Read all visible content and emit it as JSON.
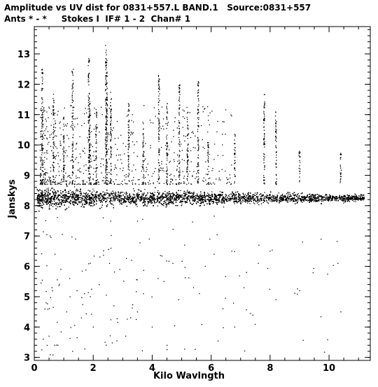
{
  "header": {
    "line1": "Amplitude vs UV dist for 0831+557.L BAND.1   Source:0831+557",
    "line2": "Ants * - *     Stokes I  IF# 1 - 2  Chan# 1"
  },
  "chart_data": {
    "type": "scatter",
    "title": "Amplitude vs UV dist for 0831+557.L BAND.1   Source:0831+557",
    "subtitle": "Ants * - *     Stokes I  IF# 1 - 2  Chan# 1",
    "xlabel": "Kilo Wavlngth",
    "ylabel": "Janskys",
    "xlim": [
      0,
      11.4
    ],
    "ylim": [
      2.9,
      13.9
    ],
    "xticks": [
      0,
      2,
      4,
      6,
      8,
      10
    ],
    "yticks": [
      3,
      4,
      5,
      6,
      7,
      8,
      9,
      10,
      11,
      12,
      13
    ],
    "grid": false,
    "legend": "none",
    "marker_color": "#000000",
    "main_band": {
      "x_range": [
        0.1,
        11.2
      ],
      "center": 8.25,
      "half_width_inner": 0.45,
      "half_width_outer": 0.15
    },
    "spikes": [
      {
        "x": 0.27,
        "ymax": 12.5
      },
      {
        "x": 0.65,
        "ymax": 11.7
      },
      {
        "x": 1.0,
        "ymax": 11.0
      },
      {
        "x": 1.3,
        "ymax": 12.5
      },
      {
        "x": 1.85,
        "ymax": 12.9
      },
      {
        "x": 1.88,
        "ymax": 11.5
      },
      {
        "x": 2.1,
        "ymax": 11.3
      },
      {
        "x": 2.43,
        "ymax": 13.3
      },
      {
        "x": 2.46,
        "ymax": 12.8
      },
      {
        "x": 2.6,
        "ymax": 11.8
      },
      {
        "x": 3.2,
        "ymax": 11.4
      },
      {
        "x": 3.7,
        "ymax": 10.8
      },
      {
        "x": 4.23,
        "ymax": 12.3
      },
      {
        "x": 4.5,
        "ymax": 11.4
      },
      {
        "x": 4.92,
        "ymax": 12.0
      },
      {
        "x": 5.2,
        "ymax": 11.1
      },
      {
        "x": 5.56,
        "ymax": 12.1
      },
      {
        "x": 5.9,
        "ymax": 10.2
      },
      {
        "x": 6.8,
        "ymax": 10.4
      },
      {
        "x": 7.8,
        "ymax": 11.7
      },
      {
        "x": 8.2,
        "ymax": 11.1
      },
      {
        "x": 9.0,
        "ymax": 9.8
      },
      {
        "x": 10.4,
        "ymax": 9.8
      }
    ],
    "outliers": [
      [
        0.3,
        3.6
      ],
      [
        0.4,
        4.8
      ],
      [
        0.5,
        3.7
      ],
      [
        0.6,
        5.3
      ],
      [
        0.7,
        6.4
      ],
      [
        0.8,
        3.4
      ],
      [
        0.9,
        5.9
      ],
      [
        1.1,
        4.5
      ],
      [
        1.2,
        5.6
      ],
      [
        1.3,
        3.2
      ],
      [
        1.4,
        6.9
      ],
      [
        1.6,
        4.3
      ],
      [
        1.7,
        5.1
      ],
      [
        1.9,
        6.1
      ],
      [
        2.0,
        4.0
      ],
      [
        2.2,
        5.4
      ],
      [
        2.4,
        3.5
      ],
      [
        2.6,
        6.6
      ],
      [
        2.7,
        4.7
      ],
      [
        2.9,
        5.9
      ],
      [
        3.1,
        3.7
      ],
      [
        3.3,
        6.2
      ],
      [
        3.5,
        4.5
      ],
      [
        3.7,
        5.1
      ],
      [
        3.9,
        6.9
      ],
      [
        4.0,
        4.0
      ],
      [
        4.2,
        5.6
      ],
      [
        4.4,
        5.5
      ],
      [
        4.5,
        3.4
      ],
      [
        4.7,
        6.1
      ],
      [
        4.9,
        4.9
      ],
      [
        5.1,
        6.7
      ],
      [
        5.4,
        5.3
      ],
      [
        5.6,
        5.1
      ],
      [
        5.8,
        6.0
      ],
      [
        6.1,
        6.4
      ],
      [
        6.4,
        4.6
      ],
      [
        6.7,
        6.5
      ],
      [
        6.8,
        4.0
      ],
      [
        7.2,
        5.8
      ],
      [
        7.6,
        6.1
      ],
      [
        8.0,
        6.5
      ],
      [
        8.2,
        4.9
      ],
      [
        9.0,
        5.2
      ],
      [
        9.1,
        6.8
      ],
      [
        10.3,
        6.1
      ],
      [
        10.4,
        4.5
      ]
    ]
  }
}
